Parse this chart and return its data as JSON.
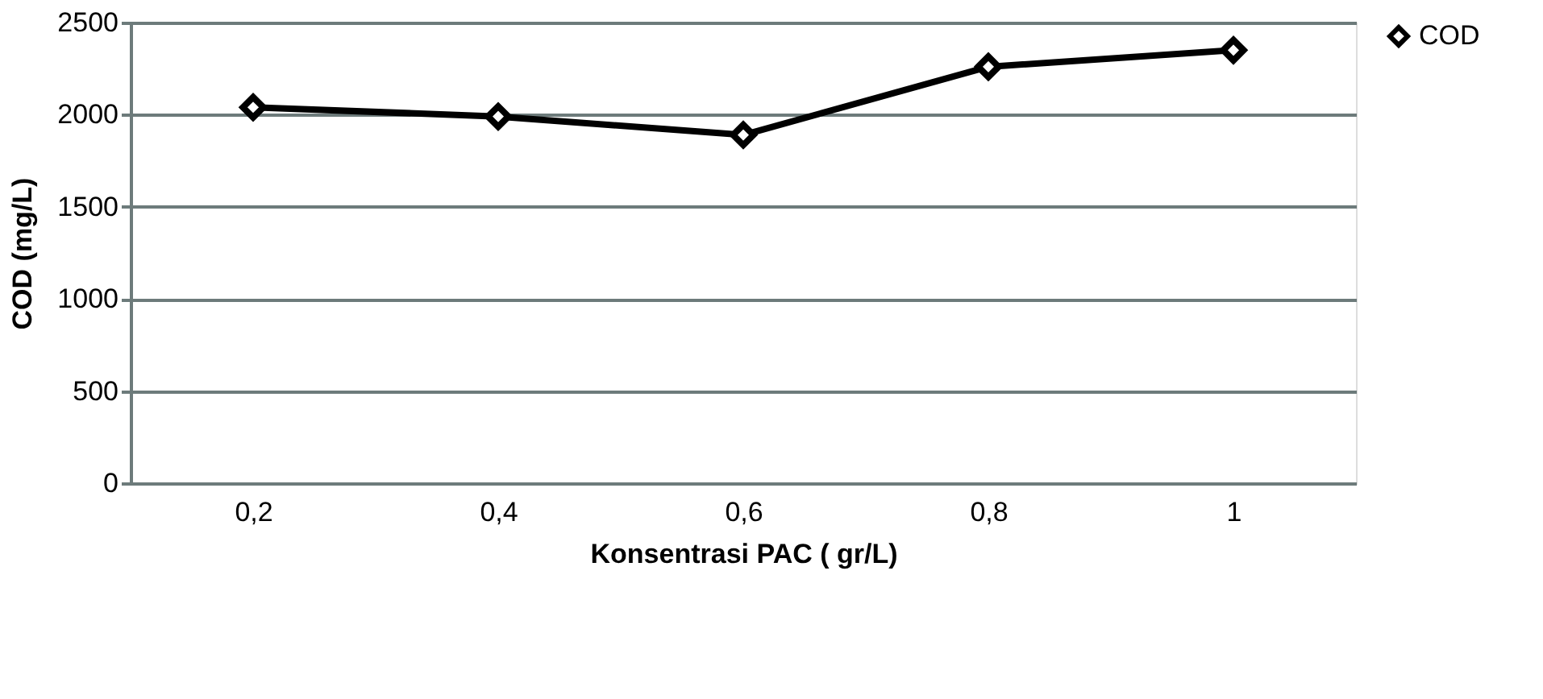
{
  "chart_data": {
    "type": "line",
    "xlabel": "Konsentrasi PAC ( gr/L)",
    "ylabel": "COD  (mg/L)",
    "categories": [
      "0,2",
      "0,4",
      "0,6",
      "0,8",
      "1"
    ],
    "series": [
      {
        "name": "COD",
        "color": "#000000",
        "values": [
          2040,
          1990,
          1890,
          2260,
          2350
        ]
      }
    ],
    "ylim": [
      0,
      2500
    ],
    "yticks": [
      0,
      500,
      1000,
      1500,
      2000,
      2500
    ],
    "grid": "y",
    "legend": "right",
    "marker": "diamond",
    "line_style": "solid"
  }
}
